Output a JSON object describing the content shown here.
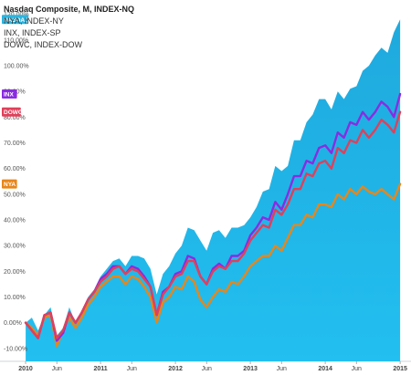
{
  "chart_data": {
    "type": "area",
    "title": "Nasdaq Composite, M, INDEX-NQ",
    "legend_entries": [
      "NYA, INDEX-NY",
      "INX, INDEX-SP",
      "DOWC, INDEX-DOW"
    ],
    "xlabel": "",
    "ylabel": "",
    "ylim": [
      -15,
      122
    ],
    "y_ticks": [
      "120.00%",
      "110.00%",
      "100.00%",
      "90.00%",
      "80.00%",
      "70.00%",
      "60.00%",
      "50.00%",
      "40.00%",
      "30.00%",
      "20.00%",
      "10.00%",
      "0.00%",
      "-10.00%"
    ],
    "y_tick_values": [
      120,
      110,
      100,
      90,
      80,
      70,
      60,
      50,
      40,
      30,
      20,
      10,
      0,
      -10
    ],
    "x_ticks": [
      {
        "label": "2010",
        "value": 0,
        "bold": true
      },
      {
        "label": "Jun",
        "value": 5,
        "bold": false
      },
      {
        "label": "2011",
        "value": 12,
        "bold": true
      },
      {
        "label": "Jun",
        "value": 17,
        "bold": false
      },
      {
        "label": "2012",
        "value": 24,
        "bold": true
      },
      {
        "label": "Jun",
        "value": 29,
        "bold": false
      },
      {
        "label": "2013",
        "value": 36,
        "bold": true
      },
      {
        "label": "Jun",
        "value": 41,
        "bold": false
      },
      {
        "label": "2014",
        "value": 48,
        "bold": true
      },
      {
        "label": "Jun",
        "value": 53,
        "bold": false
      },
      {
        "label": "2015",
        "value": 60,
        "bold": true
      }
    ],
    "xlim": [
      -0.3,
      61.3
    ],
    "grid": false,
    "legend_position": "top-left",
    "badges": [
      {
        "label": "NASDAQ",
        "value": 118,
        "color": "#2bb5e0",
        "side": "left"
      },
      {
        "label": "INX",
        "value": 89,
        "color": "#8a2be2",
        "side": "left"
      },
      {
        "label": "DOWC",
        "value": 82,
        "color": "#e0405a",
        "side": "left"
      },
      {
        "label": "NYA",
        "value": 54,
        "color": "#e8861a",
        "side": "left"
      }
    ],
    "series": [
      {
        "name": "Nasdaq Composite, M, INDEX-NQ",
        "type": "area",
        "color": "#1fa9dd",
        "values": [
          0,
          2,
          -3,
          3,
          6,
          -5,
          -2,
          6,
          0,
          5,
          10,
          13,
          18,
          21,
          24,
          25,
          22,
          26,
          26,
          25,
          21,
          11,
          19,
          22,
          27,
          30,
          37,
          36,
          32,
          28,
          35,
          36,
          33,
          37,
          37,
          38,
          41,
          45,
          51,
          52,
          61,
          59,
          61,
          71,
          71,
          78,
          81,
          87,
          87,
          83,
          90,
          87,
          91,
          92,
          98,
          100,
          104,
          107,
          105,
          113,
          118
        ]
      },
      {
        "name": "NYA, INDEX-NY",
        "type": "line",
        "color": "#e8861a",
        "values": [
          0,
          -2,
          -5,
          2,
          3,
          -9,
          -3,
          2,
          -2,
          2,
          7,
          10,
          14,
          16,
          18,
          18,
          15,
          18,
          17,
          14,
          10,
          0,
          8,
          10,
          14,
          13,
          18,
          16,
          9,
          6,
          10,
          13,
          12,
          16,
          15,
          18,
          22,
          24,
          26,
          26,
          30,
          28,
          33,
          38,
          38,
          42,
          41,
          46,
          46,
          45,
          50,
          48,
          52,
          50,
          53,
          51,
          50,
          52,
          50,
          48,
          54
        ]
      },
      {
        "name": "INX, INDEX-SP",
        "type": "line",
        "color": "#8a2be2",
        "values": [
          0,
          -3,
          -6,
          3,
          4,
          -7,
          -4,
          4,
          0,
          4,
          9,
          12,
          17,
          19,
          22,
          22,
          19,
          22,
          21,
          18,
          14,
          3,
          12,
          14,
          19,
          20,
          26,
          25,
          18,
          15,
          21,
          23,
          21,
          26,
          26,
          28,
          34,
          37,
          41,
          40,
          47,
          44,
          50,
          57,
          57,
          63,
          62,
          68,
          69,
          66,
          74,
          72,
          78,
          77,
          82,
          79,
          82,
          86,
          84,
          80,
          89
        ]
      },
      {
        "name": "DOWC, INDEX-DOW",
        "type": "line",
        "color": "#e0405a",
        "values": [
          0,
          -3,
          -6,
          3,
          4,
          -6,
          -3,
          4,
          0,
          4,
          9,
          12,
          16,
          18,
          21,
          22,
          19,
          21,
          20,
          17,
          14,
          3,
          11,
          14,
          18,
          19,
          24,
          24,
          18,
          15,
          20,
          22,
          21,
          24,
          24,
          27,
          32,
          35,
          38,
          37,
          44,
          42,
          46,
          52,
          52,
          58,
          57,
          62,
          63,
          60,
          68,
          66,
          71,
          70,
          75,
          72,
          75,
          79,
          77,
          74,
          82
        ]
      }
    ]
  }
}
